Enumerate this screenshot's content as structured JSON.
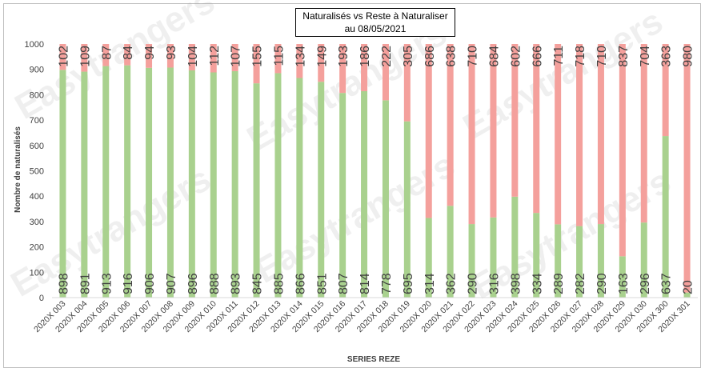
{
  "chart_data": {
    "type": "bar",
    "stacked": true,
    "title": "Naturalisés vs Reste à Naturaliser",
    "subtitle": "au 08/05/2021",
    "xlabel": "SERIES REZE",
    "ylabel": "Nombre de naturalisés",
    "ylim": [
      0,
      1000
    ],
    "yticks": [
      0,
      100,
      200,
      300,
      400,
      500,
      600,
      700,
      800,
      900,
      1000
    ],
    "grid": false,
    "legend": "none",
    "watermark": "Easytrangers",
    "categories": [
      "2020X 003",
      "2020X 004",
      "2020X 005",
      "2020X 006",
      "2020X 007",
      "2020X 008",
      "2020X 009",
      "2020X 010",
      "2020X 011",
      "2020X 012",
      "2020X 013",
      "2020X 014",
      "2020X 015",
      "2020X 016",
      "2020X 017",
      "2020X 018",
      "2020X 019",
      "2020X 020",
      "2020X 021",
      "2020X 022",
      "2020X 023",
      "2020X 024",
      "2020X 025",
      "2020X 026",
      "2020X 027",
      "2020X 028",
      "2020X 029",
      "2020X 030",
      "2020X 300",
      "2020X 301"
    ],
    "series": [
      {
        "color": "#a9d18e",
        "values": [
          898,
          891,
          913,
          916,
          906,
          907,
          896,
          888,
          893,
          845,
          885,
          866,
          851,
          807,
          814,
          778,
          695,
          314,
          362,
          290,
          316,
          398,
          334,
          289,
          282,
          290,
          163,
          296,
          637,
          20
        ]
      },
      {
        "color": "#f4a09c",
        "values": [
          102,
          109,
          87,
          84,
          94,
          93,
          104,
          112,
          107,
          155,
          115,
          134,
          149,
          193,
          186,
          222,
          305,
          686,
          638,
          710,
          684,
          602,
          666,
          711,
          718,
          710,
          837,
          704,
          363,
          980
        ]
      }
    ]
  }
}
